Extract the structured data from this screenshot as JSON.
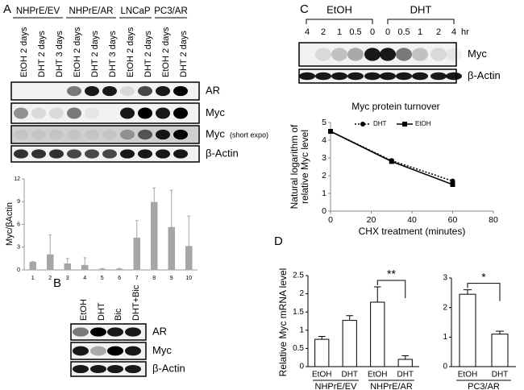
{
  "panel_labels": [
    "A",
    "B",
    "C",
    "D"
  ],
  "blot_A": {
    "groups": [
      "NHPrE/EV",
      "NHPrE/AR",
      "LNCaP",
      "PC3/AR"
    ],
    "lanes": [
      "EtOH 2 days",
      "DHT 2 days",
      "DHT 3 days",
      "EtOH 2 days",
      "DHT 2 days",
      "DHT 3 days",
      "EtOH 2 days",
      "DHT 2 days",
      "EtOH 2 days",
      "DHT 2 days"
    ],
    "rows": [
      {
        "label": "AR"
      },
      {
        "label": "Myc"
      },
      {
        "label": "Myc",
        "note": "(short expo)"
      },
      {
        "label": "β-Actin"
      }
    ]
  },
  "blot_B": {
    "lanes": [
      "EtOH",
      "DHT",
      "Bic",
      "DHT+Bic"
    ],
    "rows": [
      "AR",
      "Myc",
      "β-Actin"
    ]
  },
  "blot_C": {
    "conditions": [
      "EtOH",
      "DHT"
    ],
    "times": [
      "4",
      "2",
      "1",
      "0.5",
      "0",
      "0",
      "0.5",
      "1",
      "2",
      "4"
    ],
    "unit": "hr",
    "rows": [
      "Myc",
      "β-Actin"
    ]
  },
  "chart_data": [
    {
      "type": "bar",
      "ylabel": "Myc/βActin",
      "categories": [
        "1",
        "2",
        "3",
        "4",
        "5",
        "6",
        "7",
        "8",
        "9",
        "10"
      ],
      "values": [
        1.0,
        2.0,
        0.8,
        0.6,
        0.1,
        0.1,
        4.2,
        8.9,
        5.6,
        3.1
      ],
      "errors": [
        0.1,
        2.6,
        0.7,
        1.0,
        0.1,
        0.1,
        2.3,
        1.9,
        4.9,
        4.0
      ],
      "color": "#a6a6a6",
      "edgecolor": "#a6a6a6",
      "ylim": [
        0,
        12
      ],
      "yticks": [
        0,
        3,
        6,
        9,
        12
      ]
    },
    {
      "type": "line",
      "title": "Myc protein turnover",
      "xlabel": "CHX treatment (minutes)",
      "ylabel": [
        "Natural logarithm of",
        "relative Myc level"
      ],
      "x": [
        0,
        30,
        60
      ],
      "series": [
        {
          "name": "DHT",
          "color": "#000000",
          "values": [
            4.5,
            2.85,
            1.7
          ],
          "marker": "circle",
          "line_style": "dotted"
        },
        {
          "name": "EtOH",
          "color": "#000000",
          "values": [
            4.5,
            2.8,
            1.5
          ],
          "marker": "square",
          "line_style": "solid"
        }
      ],
      "xlim": [
        0,
        80
      ],
      "xticks": [
        0,
        20,
        40,
        60,
        80
      ],
      "ylim": [
        0,
        5
      ],
      "yticks": [
        0,
        1,
        2,
        3,
        4,
        5
      ],
      "legend": "top"
    },
    {
      "type": "bar",
      "ylabel": "Relative Myc mRNA level",
      "categories": [
        "EtOH",
        "DHT",
        "EtOH",
        "DHT"
      ],
      "groups": [
        "NHPrE/EV",
        "NHPrE/AR"
      ],
      "values": [
        0.75,
        1.27,
        1.77,
        0.2
      ],
      "errors": [
        0.08,
        0.13,
        0.42,
        0.1
      ],
      "color": "#ffffff",
      "edgecolor": "#000000",
      "ylim": [
        0,
        2.5
      ],
      "yticks": [
        0,
        0.5,
        1,
        1.5,
        2,
        2.5
      ],
      "significance": "**"
    },
    {
      "type": "bar",
      "categories": [
        "EtOH",
        "DHT"
      ],
      "groups": [
        "PC3/AR"
      ],
      "values": [
        2.45,
        1.1
      ],
      "errors": [
        0.15,
        0.1
      ],
      "color": "#ffffff",
      "edgecolor": "#000000",
      "ylim": [
        0,
        3
      ],
      "yticks": [
        0,
        1,
        2,
        3
      ],
      "significance": "*"
    }
  ]
}
